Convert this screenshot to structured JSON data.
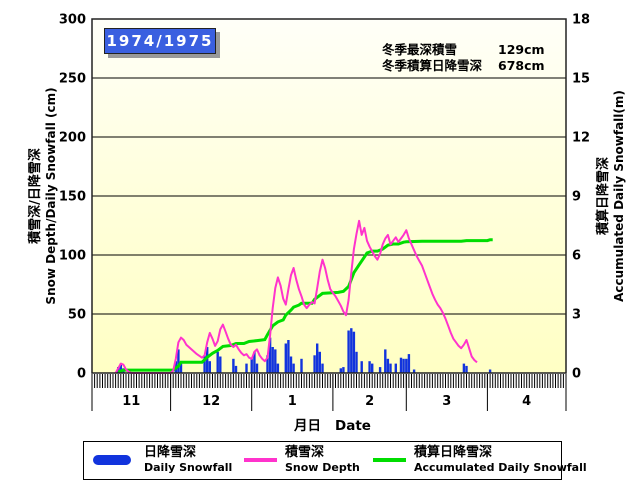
{
  "title": "1974/1975",
  "annotations": {
    "max_depth_label": "冬季最深積雪",
    "max_depth_value": "129cm",
    "total_snowfall_label": "冬季積算日降雪深",
    "total_snowfall_value": "678cm"
  },
  "axes": {
    "left": {
      "title_ja": "積雪深/日降雪深",
      "title_en": "Snow Depth/Daily Snowfall (cm)"
    },
    "right": {
      "title_ja": "積算日降雪深",
      "title_en": "Accumulated Daily Snowfall(m)"
    },
    "x": {
      "title_ja": "月日",
      "title_en": "Date"
    }
  },
  "legend": {
    "items": [
      {
        "label_ja": "日降雪深",
        "label_en": "Daily Snowfall",
        "color": "#1133DD",
        "swatch": "capsule"
      },
      {
        "label_ja": "積雪深",
        "label_en": "Snow Depth",
        "color": "#FF33CC",
        "swatch": "line"
      },
      {
        "label_ja": "積算日降雪深",
        "label_en": "Accumulated Daily Snowfall",
        "color": "#00DD00",
        "swatch": "line"
      }
    ]
  },
  "colors": {
    "plot_bg_top": "#FFFFF8",
    "plot_bg_bottom": "#FFFFC4",
    "grid": "#000000",
    "border": "#222222",
    "title_box": "#3A5FE0",
    "title_text": "#FFFFFF",
    "bar": "#1133DD",
    "depth_line": "#FF33CC",
    "accum_line": "#00DD00"
  },
  "chart_data": {
    "type": "composite",
    "title": "1974/1975",
    "x_axis": {
      "label": "月日 Date",
      "months": [
        "11",
        "12",
        "1",
        "2",
        "3",
        "4"
      ],
      "month_start_days": [
        0,
        30,
        61,
        92,
        120,
        151,
        181
      ],
      "total_days": 181,
      "day_index_origin": "Nov 1"
    },
    "y_left": {
      "min": 0,
      "max": 300,
      "ticks": [
        0,
        50,
        100,
        150,
        200,
        250,
        300
      ],
      "label": "積雪深/日降雪深 Snow Depth/Daily Snowfall (cm)"
    },
    "y_right": {
      "min": 0,
      "max": 18,
      "ticks": [
        0,
        3,
        6,
        9,
        12,
        15,
        18
      ],
      "label": "積算日降雪深 Accumulated Daily Snowfall(m)"
    },
    "stats": {
      "winter_max_snow_depth_cm": 129,
      "winter_accumulated_daily_snowfall_cm": 678
    },
    "series": [
      {
        "name": "Daily Snowfall",
        "name_ja": "日降雪深",
        "type": "bar",
        "axis": "left",
        "color": "#1133DD",
        "points": [
          [
            10,
            5
          ],
          [
            11,
            8
          ],
          [
            12,
            4
          ],
          [
            32,
            10
          ],
          [
            33,
            20
          ],
          [
            34,
            8
          ],
          [
            43,
            15
          ],
          [
            44,
            22
          ],
          [
            45,
            10
          ],
          [
            48,
            18
          ],
          [
            49,
            14
          ],
          [
            54,
            12
          ],
          [
            55,
            6
          ],
          [
            59,
            8
          ],
          [
            61,
            12
          ],
          [
            62,
            18
          ],
          [
            63,
            8
          ],
          [
            67,
            15
          ],
          [
            68,
            30
          ],
          [
            69,
            22
          ],
          [
            70,
            20
          ],
          [
            71,
            8
          ],
          [
            74,
            25
          ],
          [
            75,
            28
          ],
          [
            76,
            14
          ],
          [
            77,
            8
          ],
          [
            80,
            12
          ],
          [
            85,
            15
          ],
          [
            86,
            25
          ],
          [
            87,
            18
          ],
          [
            88,
            8
          ],
          [
            95,
            4
          ],
          [
            96,
            5
          ],
          [
            98,
            36
          ],
          [
            99,
            38
          ],
          [
            100,
            35
          ],
          [
            101,
            18
          ],
          [
            103,
            10
          ],
          [
            106,
            10
          ],
          [
            107,
            8
          ],
          [
            110,
            5
          ],
          [
            112,
            20
          ],
          [
            113,
            12
          ],
          [
            114,
            8
          ],
          [
            116,
            8
          ],
          [
            118,
            13
          ],
          [
            119,
            12
          ],
          [
            120,
            12
          ],
          [
            121,
            16
          ],
          [
            123,
            3
          ],
          [
            142,
            8
          ],
          [
            143,
            6
          ],
          [
            152,
            3
          ]
        ]
      },
      {
        "name": "Snow Depth",
        "name_ja": "積雪深",
        "type": "line",
        "axis": "left",
        "color": "#FF33CC",
        "points": [
          [
            9,
            0
          ],
          [
            10,
            4
          ],
          [
            11,
            8
          ],
          [
            12,
            7
          ],
          [
            13,
            3
          ],
          [
            14,
            1
          ],
          [
            15,
            0
          ],
          [
            30,
            0
          ],
          [
            31,
            2
          ],
          [
            32,
            12
          ],
          [
            33,
            26
          ],
          [
            34,
            30
          ],
          [
            35,
            28
          ],
          [
            36,
            24
          ],
          [
            38,
            20
          ],
          [
            40,
            16
          ],
          [
            42,
            13
          ],
          [
            43,
            15
          ],
          [
            44,
            26
          ],
          [
            45,
            34
          ],
          [
            46,
            29
          ],
          [
            47,
            23
          ],
          [
            48,
            27
          ],
          [
            49,
            37
          ],
          [
            50,
            41
          ],
          [
            51,
            35
          ],
          [
            52,
            29
          ],
          [
            53,
            24
          ],
          [
            54,
            22
          ],
          [
            55,
            24
          ],
          [
            56,
            20
          ],
          [
            57,
            17
          ],
          [
            58,
            15
          ],
          [
            59,
            16
          ],
          [
            60,
            13
          ],
          [
            61,
            12
          ],
          [
            62,
            18
          ],
          [
            63,
            20
          ],
          [
            64,
            15
          ],
          [
            65,
            12
          ],
          [
            66,
            10
          ],
          [
            67,
            13
          ],
          [
            68,
            32
          ],
          [
            69,
            55
          ],
          [
            70,
            72
          ],
          [
            71,
            81
          ],
          [
            72,
            74
          ],
          [
            73,
            63
          ],
          [
            74,
            58
          ],
          [
            75,
            71
          ],
          [
            76,
            83
          ],
          [
            77,
            89
          ],
          [
            78,
            79
          ],
          [
            79,
            71
          ],
          [
            80,
            65
          ],
          [
            81,
            58
          ],
          [
            82,
            55
          ],
          [
            83,
            58
          ],
          [
            84,
            60
          ],
          [
            85,
            59
          ],
          [
            86,
            72
          ],
          [
            87,
            86
          ],
          [
            88,
            96
          ],
          [
            89,
            89
          ],
          [
            90,
            79
          ],
          [
            91,
            71
          ],
          [
            92,
            68
          ],
          [
            93,
            65
          ],
          [
            94,
            61
          ],
          [
            95,
            57
          ],
          [
            96,
            52
          ],
          [
            97,
            49
          ],
          [
            98,
            62
          ],
          [
            99,
            85
          ],
          [
            100,
            105
          ],
          [
            101,
            118
          ],
          [
            102,
            129
          ],
          [
            103,
            117
          ],
          [
            104,
            123
          ],
          [
            105,
            112
          ],
          [
            106,
            107
          ],
          [
            107,
            103
          ],
          [
            108,
            99
          ],
          [
            109,
            96
          ],
          [
            110,
            101
          ],
          [
            111,
            109
          ],
          [
            112,
            114
          ],
          [
            113,
            117
          ],
          [
            114,
            109
          ],
          [
            115,
            112
          ],
          [
            116,
            115
          ],
          [
            117,
            111
          ],
          [
            118,
            114
          ],
          [
            119,
            117
          ],
          [
            120,
            121
          ],
          [
            121,
            114
          ],
          [
            122,
            109
          ],
          [
            123,
            104
          ],
          [
            124,
            99
          ],
          [
            125,
            95
          ],
          [
            126,
            91
          ],
          [
            127,
            85
          ],
          [
            128,
            79
          ],
          [
            129,
            73
          ],
          [
            130,
            67
          ],
          [
            131,
            62
          ],
          [
            132,
            58
          ],
          [
            133,
            55
          ],
          [
            134,
            51
          ],
          [
            135,
            46
          ],
          [
            136,
            40
          ],
          [
            137,
            34
          ],
          [
            138,
            29
          ],
          [
            139,
            26
          ],
          [
            140,
            23
          ],
          [
            141,
            21
          ],
          [
            142,
            24
          ],
          [
            143,
            28
          ],
          [
            144,
            21
          ],
          [
            145,
            14
          ],
          [
            146,
            11
          ],
          [
            147,
            9
          ]
        ]
      },
      {
        "name": "Accumulated Daily Snowfall",
        "name_ja": "積算日降雪深",
        "type": "line",
        "axis": "right",
        "color": "#00DD00",
        "points": [
          [
            10,
            0.05
          ],
          [
            12,
            0.15
          ],
          [
            31,
            0.15
          ],
          [
            33,
            0.35
          ],
          [
            34,
            0.55
          ],
          [
            42,
            0.55
          ],
          [
            44,
            0.8
          ],
          [
            46,
            1.0
          ],
          [
            48,
            1.15
          ],
          [
            50,
            1.35
          ],
          [
            53,
            1.4
          ],
          [
            55,
            1.5
          ],
          [
            58,
            1.5
          ],
          [
            60,
            1.6
          ],
          [
            63,
            1.65
          ],
          [
            66,
            1.7
          ],
          [
            67,
            1.95
          ],
          [
            69,
            2.4
          ],
          [
            71,
            2.6
          ],
          [
            73,
            2.7
          ],
          [
            74,
            2.95
          ],
          [
            76,
            3.2
          ],
          [
            77,
            3.35
          ],
          [
            79,
            3.45
          ],
          [
            80,
            3.55
          ],
          [
            84,
            3.55
          ],
          [
            85,
            3.75
          ],
          [
            88,
            4.05
          ],
          [
            94,
            4.1
          ],
          [
            96,
            4.15
          ],
          [
            98,
            4.4
          ],
          [
            100,
            5.1
          ],
          [
            102,
            5.5
          ],
          [
            104,
            5.9
          ],
          [
            105,
            6.1
          ],
          [
            107,
            6.2
          ],
          [
            109,
            6.2
          ],
          [
            111,
            6.3
          ],
          [
            113,
            6.5
          ],
          [
            115,
            6.56
          ],
          [
            117,
            6.56
          ],
          [
            119,
            6.65
          ],
          [
            120,
            6.67
          ],
          [
            126,
            6.7
          ],
          [
            141,
            6.7
          ],
          [
            143,
            6.73
          ],
          [
            151,
            6.73
          ],
          [
            152,
            6.78
          ],
          [
            153,
            6.78
          ]
        ]
      }
    ]
  }
}
